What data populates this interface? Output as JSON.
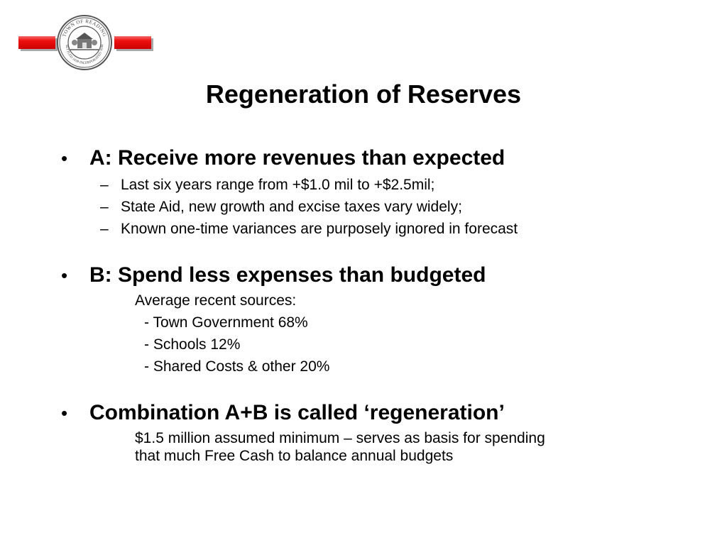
{
  "seal": {
    "ring_text": "TOWN OF READING",
    "ring_text_bottom": "SETTLED 1639 INCORPORATED 1644"
  },
  "title": "Regeneration of Reserves",
  "sections": [
    {
      "bullet": "•",
      "heading": "A: Receive more revenues than expected",
      "items": [
        "Last six years range from +$1.0 mil to +$2.5mil;",
        "State Aid, new growth and excise taxes vary widely;",
        "Known one-time variances are purposely ignored in forecast"
      ]
    },
    {
      "bullet": "•",
      "heading": "B: Spend less expenses than budgeted",
      "intro": "Average recent sources:",
      "items": [
        "- Town Government 68%",
        "- Schools 12%",
        "- Shared Costs & other 20%"
      ]
    },
    {
      "bullet": "•",
      "heading": "Combination A+B is called ‘regeneration’",
      "lines": [
        "$1.5 million assumed minimum – serves as basis for spending",
        "that much Free Cash to balance annual budgets"
      ]
    }
  ],
  "dash": "–",
  "colors": {
    "bar": "#e00000",
    "seal": "#555555"
  }
}
